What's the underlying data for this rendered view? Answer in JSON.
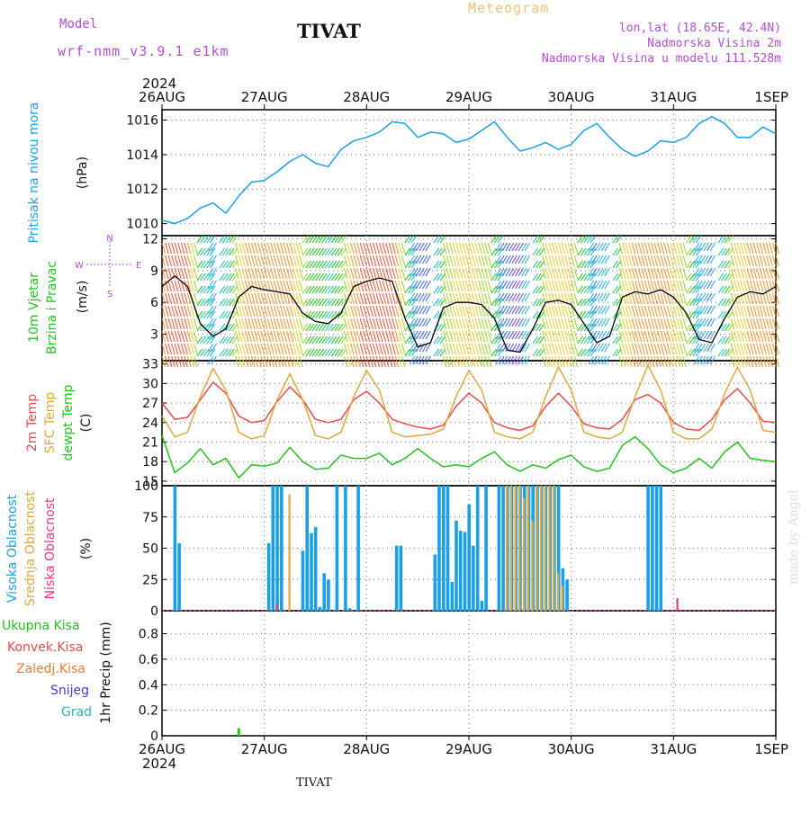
{
  "header": {
    "model_label": "Model",
    "model_name": "wrf-nmm_v3.9.1 e1km",
    "station": "TIVAT",
    "meteogram_label": "Meteogram",
    "lonlat": "lon,lat (18.65E, 42.4N)",
    "height": "Nadmorska Visina 2m",
    "model_height": "Nadmorska Visina u modelu 111.528m",
    "footer_station": "TIVAT",
    "credit": "made by Angel"
  },
  "colors": {
    "pressure": "#1aa0e6",
    "t2m": "#e84a4a",
    "sfc": "#e0a83c",
    "dewpt": "#22c41e",
    "wind_speed": "#000000",
    "high_cloud": "#1aa0e6",
    "mid_cloud": "#e0a83c",
    "low_cloud": "#e83a7a",
    "total_precip": "#22c41e",
    "conv_precip": "#e84a4a",
    "frozen_precip": "#f07a2a",
    "snow": "#4040e0",
    "hail": "#2ab5b0",
    "compass": "#b14fd6"
  },
  "chart_data": [
    {
      "type": "line",
      "panel": "pressure",
      "ylabel_main": "Pritisak na nivou mora",
      "ylabel_unit": "(hPa)",
      "x_date_labels": [
        "26AUG",
        "27AUG",
        "28AUG",
        "29AUG",
        "30AUG",
        "31AUG",
        "1SEP"
      ],
      "year_label": "2024",
      "x_hours": [
        0,
        3,
        6,
        9,
        12,
        15,
        18,
        21,
        24,
        27,
        30,
        33,
        36,
        39,
        42,
        45,
        48,
        51,
        54,
        57,
        60,
        63,
        66,
        69,
        72,
        75,
        78,
        81,
        84,
        87,
        90,
        93,
        96,
        99,
        102,
        105,
        108,
        111,
        114,
        117,
        120,
        123,
        126,
        129,
        132,
        135,
        138,
        141,
        144
      ],
      "y_ticks": [
        1010,
        1012,
        1014,
        1016
      ],
      "ylim": [
        1009.3,
        1016.6
      ],
      "series": [
        {
          "values": [
            1010.2,
            1010.0,
            1010.3,
            1010.9,
            1011.2,
            1010.6,
            1011.6,
            1012.4,
            1012.5,
            1013.0,
            1013.6,
            1014.0,
            1013.5,
            1013.3,
            1014.3,
            1014.8,
            1015.0,
            1015.3,
            1015.9,
            1015.8,
            1015.0,
            1015.3,
            1015.2,
            1014.7,
            1014.9,
            1015.4,
            1015.9,
            1015.0,
            1014.2,
            1014.4,
            1014.7,
            1014.3,
            1014.6,
            1015.4,
            1015.8,
            1015.0,
            1014.3,
            1013.9,
            1014.2,
            1014.8,
            1014.7,
            1015.0,
            1015.8,
            1016.2,
            1015.8,
            1015.0,
            1015.0,
            1015.6,
            1015.2
          ]
        }
      ]
    },
    {
      "type": "line",
      "panel": "wind",
      "ylabel_main": "10m Vjetar",
      "ylabel_sub": "Brzina i Pravac",
      "ylabel_unit": "(m/s)",
      "compass_labels": {
        "n": "N",
        "e": "E",
        "w": "W",
        "s": "S"
      },
      "x_hours": [
        0,
        3,
        6,
        9,
        12,
        15,
        18,
        21,
        24,
        27,
        30,
        33,
        36,
        39,
        42,
        45,
        48,
        51,
        54,
        57,
        60,
        63,
        66,
        69,
        72,
        75,
        78,
        81,
        84,
        87,
        90,
        93,
        96,
        99,
        102,
        105,
        108,
        111,
        114,
        117,
        120,
        123,
        126,
        129,
        132,
        135,
        138,
        141,
        144
      ],
      "y_ticks": [
        3,
        6,
        9,
        12
      ],
      "ylim": [
        0.5,
        12.3
      ],
      "series": [
        {
          "values": [
            7.5,
            8.5,
            7.5,
            4.0,
            2.8,
            3.5,
            6.5,
            7.5,
            7.2,
            7.0,
            6.8,
            5.0,
            4.2,
            4.0,
            5.0,
            7.5,
            8.0,
            8.3,
            8.0,
            4.5,
            1.8,
            2.2,
            5.5,
            6.0,
            6.0,
            5.8,
            4.5,
            1.5,
            1.3,
            3.5,
            6.0,
            6.2,
            5.8,
            4.0,
            2.2,
            2.8,
            6.5,
            7.0,
            6.8,
            7.2,
            6.5,
            5.0,
            2.5,
            2.2,
            4.5,
            6.5,
            7.0,
            6.8,
            7.5
          ]
        }
      ]
    },
    {
      "type": "line",
      "panel": "temperature",
      "ylabel_lines": [
        "2m Temp",
        "SFC Temp",
        "dewpt Temp"
      ],
      "ylabel_unit": "(C)",
      "x_hours": [
        0,
        3,
        6,
        9,
        12,
        15,
        18,
        21,
        24,
        27,
        30,
        33,
        36,
        39,
        42,
        45,
        48,
        51,
        54,
        57,
        60,
        63,
        66,
        69,
        72,
        75,
        78,
        81,
        84,
        87,
        90,
        93,
        96,
        99,
        102,
        105,
        108,
        111,
        114,
        117,
        120,
        123,
        126,
        129,
        132,
        135,
        138,
        141,
        144
      ],
      "y_ticks": [
        15,
        18,
        21,
        24,
        27,
        30,
        33
      ],
      "ylim": [
        14.3,
        33.5
      ],
      "series": [
        {
          "name": "2m Temp",
          "values": [
            27,
            24.5,
            24.8,
            27.5,
            30.2,
            28.5,
            25.0,
            24.0,
            24.3,
            27.2,
            29.5,
            27.5,
            24.5,
            24.0,
            24.5,
            27.5,
            28.8,
            27.0,
            24.5,
            23.8,
            23.3,
            23.0,
            23.6,
            26.5,
            28.5,
            27.0,
            24.0,
            23.2,
            22.8,
            23.5,
            26.5,
            28.5,
            26.5,
            23.8,
            23.2,
            23.0,
            24.5,
            27.5,
            28.3,
            27.0,
            24.0,
            23.0,
            22.8,
            24.5,
            27.5,
            29.2,
            27.0,
            24.2,
            24.0
          ]
        },
        {
          "name": "SFC Temp",
          "values": [
            25,
            21.8,
            22.5,
            28.0,
            32.3,
            29.0,
            22.5,
            21.5,
            22.0,
            27.5,
            31.5,
            27.5,
            22.0,
            21.5,
            22.5,
            28.0,
            32.0,
            29.0,
            22.5,
            21.8,
            22.0,
            22.2,
            23.0,
            28.0,
            32.0,
            29.0,
            22.5,
            21.8,
            21.5,
            22.5,
            28.0,
            32.5,
            29.0,
            22.5,
            21.8,
            21.5,
            22.5,
            28.0,
            32.8,
            29.0,
            22.5,
            21.5,
            21.5,
            23.0,
            28.5,
            32.5,
            29.0,
            22.8,
            22.5
          ]
        },
        {
          "name": "dewpt Temp",
          "values": [
            22,
            16.3,
            17.8,
            20.0,
            17.5,
            18.5,
            15.5,
            17.5,
            17.3,
            17.8,
            20.2,
            18.0,
            16.8,
            17.0,
            19.0,
            18.5,
            18.5,
            19.3,
            17.5,
            18.5,
            20.0,
            18.5,
            17.2,
            17.5,
            17.2,
            18.5,
            19.5,
            17.5,
            16.5,
            17.5,
            17.0,
            18.3,
            19.0,
            17.2,
            16.5,
            17.0,
            20.5,
            21.8,
            20.0,
            17.5,
            16.3,
            17.0,
            18.5,
            17.0,
            19.5,
            21.0,
            18.5,
            18.2,
            18.0
          ]
        }
      ]
    },
    {
      "type": "bar",
      "panel": "cloud",
      "ylabel_lines": [
        "Visoka Oblacnost",
        "Srednja Oblacnost",
        "Niska Oblacnost"
      ],
      "ylabel_unit": "(%)",
      "y_ticks": [
        0,
        25,
        50,
        75,
        100
      ],
      "ylim": [
        0,
        100
      ],
      "series": [
        {
          "name": "Visoka Oblacnost",
          "x": [
            3,
            4,
            25,
            26,
            27,
            28,
            33,
            34,
            35,
            36,
            37,
            38,
            39,
            41,
            43,
            44,
            46,
            55,
            56,
            64,
            65,
            66,
            67,
            68,
            69,
            70,
            71,
            72,
            73,
            74,
            75,
            76,
            79,
            80,
            81,
            82,
            83,
            84,
            85,
            86,
            87,
            88,
            89,
            90,
            91,
            92,
            93,
            94,
            95,
            114,
            115,
            116,
            117
          ],
          "values": [
            100,
            54,
            54,
            100,
            100,
            100,
            48,
            100,
            62,
            67,
            3,
            30,
            25,
            100,
            100,
            2,
            100,
            52,
            52,
            45,
            100,
            100,
            100,
            23,
            72,
            64,
            63,
            85,
            52,
            100,
            8,
            100,
            100,
            100,
            100,
            100,
            100,
            100,
            100,
            100,
            100,
            100,
            100,
            100,
            100,
            100,
            100,
            34,
            25,
            100,
            100,
            100,
            100
          ]
        },
        {
          "name": "Srednja Oblacnost",
          "x": [
            30,
            81,
            82,
            83,
            84,
            85,
            86,
            87,
            88,
            89,
            90,
            91,
            92,
            93,
            94
          ],
          "values": [
            93,
            100,
            100,
            100,
            100,
            90,
            100,
            72,
            100,
            100,
            100,
            100,
            100,
            30,
            20
          ]
        },
        {
          "name": "Niska Oblacnost",
          "x": [
            27,
            121
          ],
          "values": [
            6,
            10
          ]
        }
      ]
    },
    {
      "type": "bar",
      "panel": "precip",
      "ylabel_lines": [
        "Ukupna Kisa",
        "Konvek.Kisa",
        "Zaledj.Kisa",
        "Snijeg",
        "Grad"
      ],
      "ylabel_unit": "1hr Precip (mm)",
      "y_ticks": [
        0,
        0.2,
        0.4,
        0.6,
        0.8
      ],
      "y_tick_labels": [
        "0",
        "0.2",
        "0.4",
        "0.6",
        "0.8"
      ],
      "ylim": [
        0,
        0.98
      ],
      "series": [
        {
          "name": "Ukupna Kisa",
          "x": [
            18
          ],
          "values": [
            0.06
          ]
        }
      ]
    }
  ]
}
